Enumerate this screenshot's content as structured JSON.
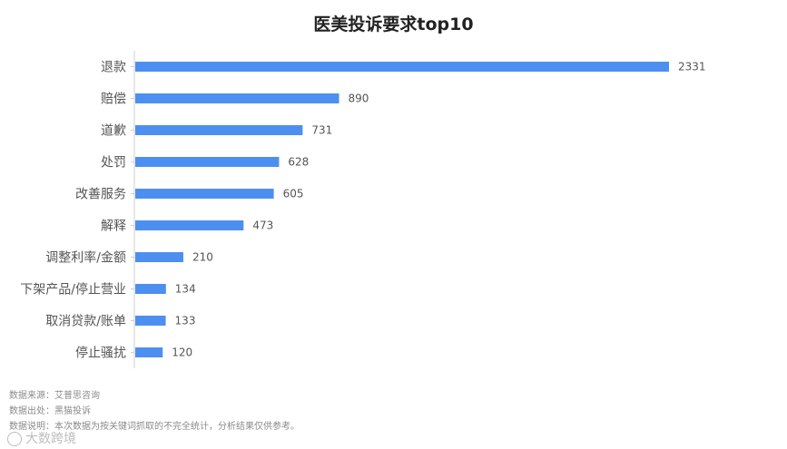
{
  "chart_data": {
    "type": "bar",
    "orientation": "horizontal",
    "title": "医美投诉要求top10",
    "categories": [
      "退款",
      "赔偿",
      "道歉",
      "处罚",
      "改善服务",
      "解释",
      "调整利率/金额",
      "下架产品/停止营业",
      "取消贷款/账单",
      "停止骚扰"
    ],
    "values": [
      2331,
      890,
      731,
      628,
      605,
      473,
      210,
      134,
      133,
      120
    ],
    "xlim": [
      0,
      2331
    ],
    "grid": false,
    "bar_color": "#4d8ff0"
  },
  "notes": {
    "source": "数据来源：艾普思咨询",
    "origin": "数据出处：黑猫投诉",
    "explanation": "数据说明：本次数据为按关键词抓取的不完全统计，分析结果仅供参考。"
  },
  "watermark": {
    "text": "大数跨境"
  }
}
